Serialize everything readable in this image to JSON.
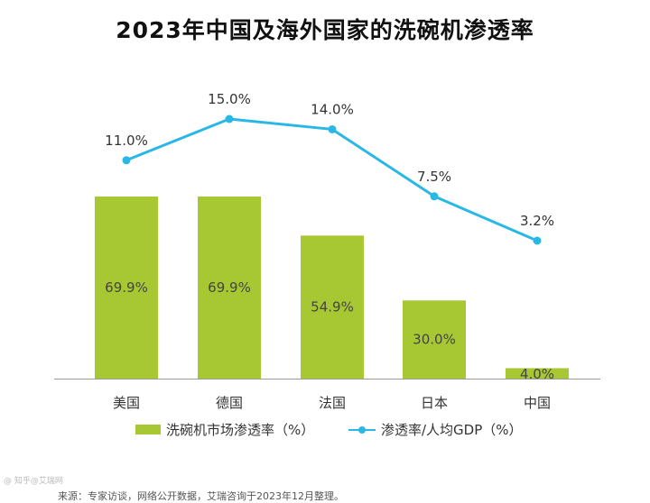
{
  "page": {
    "title": "2023年中国及海外国家的洗碗机渗透率",
    "source": "来源：专家访谈，网络公开数据，艾瑞咨询于2023年12月整理。",
    "watermark": "@ 知乎@艾瑞网"
  },
  "colors": {
    "bar": "#a7c832",
    "line": "#29b8e6",
    "baseline": "#9a9a9a"
  },
  "chart_data": {
    "type": "bar",
    "title": "2023年中国及海外国家的洗碗机渗透率",
    "categories": [
      "美国",
      "德国",
      "法国",
      "日本",
      "中国"
    ],
    "series": [
      {
        "name": "洗碗机市场渗透率（%）",
        "type": "bar",
        "values": [
          69.9,
          69.9,
          54.9,
          30.0,
          4.0
        ],
        "labels": [
          "69.9%",
          "69.9%",
          "54.9%",
          "30.0%",
          "4.0%"
        ]
      },
      {
        "name": "渗透率/人均GDP（%）",
        "type": "line",
        "values": [
          11.0,
          15.0,
          14.0,
          7.5,
          3.2
        ],
        "labels": [
          "11.0%",
          "15.0%",
          "14.0%",
          "7.5%",
          "3.2%"
        ]
      }
    ],
    "xlabel": "",
    "ylabel": "",
    "grid": false,
    "legend_position": "bottom"
  }
}
